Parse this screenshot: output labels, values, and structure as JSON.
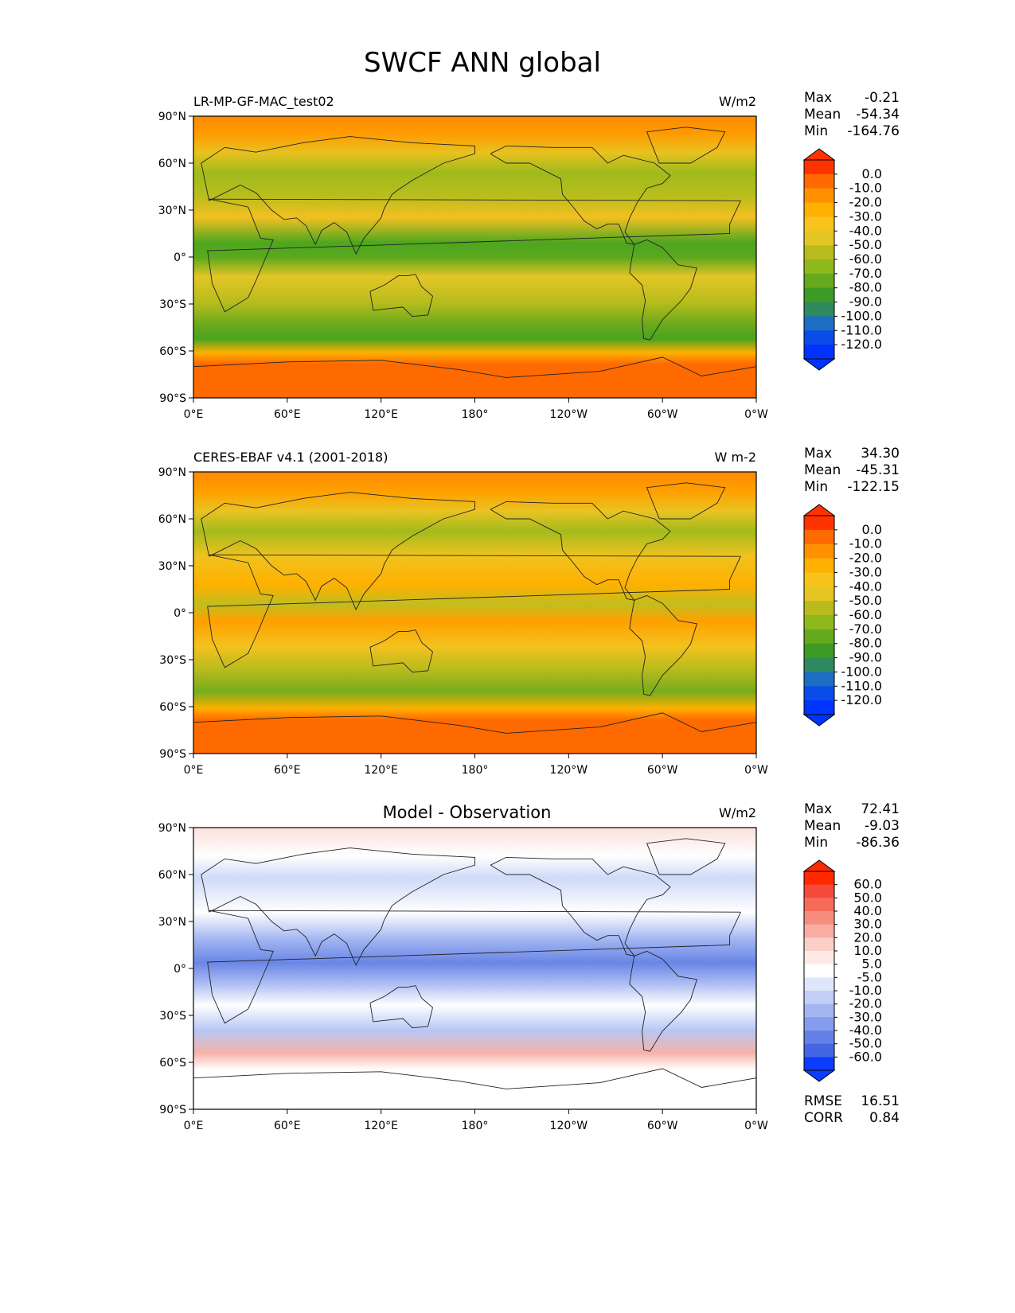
{
  "title": "SWCF ANN global",
  "lat_ticks": [
    "90°N",
    "60°N",
    "30°N",
    "0°",
    "30°S",
    "60°S",
    "90°S"
  ],
  "lon_ticks": [
    "0°E",
    "60°E",
    "120°E",
    "180°",
    "120°W",
    "60°W",
    "0°W"
  ],
  "chart_data": [
    {
      "type": "heatmap",
      "left_title": "LR-MP-GF-MAC_test02",
      "center_title": "",
      "units": "W/m2",
      "stats": [
        {
          "label": "Max",
          "value": "-0.21"
        },
        {
          "label": "Mean",
          "value": "-54.34"
        },
        {
          "label": "Min",
          "value": "-164.76"
        }
      ],
      "extra_stats": [],
      "colorbar_labels": [
        "0.0",
        "-10.0",
        "-20.0",
        "-30.0",
        "-40.0",
        "-50.0",
        "-60.0",
        "-70.0",
        "-80.0",
        "-90.0",
        "-100.0",
        "-110.0",
        "-120.0"
      ],
      "colorbar_colors": [
        "#ff3300",
        "#ff6a00",
        "#ff9100",
        "#ffb000",
        "#f7c31c",
        "#e3c624",
        "#b9bb1d",
        "#8fb81d",
        "#65a91c",
        "#3d9a24",
        "#2e8a5e",
        "#1c6ec3",
        "#0a4ce8",
        "#0033ff"
      ],
      "colorbar_edge": {
        "top": "#ff3300",
        "bottom": "#0033ff"
      }
    },
    {
      "type": "heatmap",
      "left_title": "CERES-EBAF v4.1 (2001-2018)",
      "center_title": "",
      "units": "W m-2",
      "stats": [
        {
          "label": "Max",
          "value": "34.30"
        },
        {
          "label": "Mean",
          "value": "-45.31"
        },
        {
          "label": "Min",
          "value": "-122.15"
        }
      ],
      "extra_stats": [],
      "colorbar_labels": [
        "0.0",
        "-10.0",
        "-20.0",
        "-30.0",
        "-40.0",
        "-50.0",
        "-60.0",
        "-70.0",
        "-80.0",
        "-90.0",
        "-100.0",
        "-110.0",
        "-120.0"
      ],
      "colorbar_colors": [
        "#ff3300",
        "#ff6a00",
        "#ff9100",
        "#ffb000",
        "#f7c31c",
        "#e3c624",
        "#b9bb1d",
        "#8fb81d",
        "#65a91c",
        "#3d9a24",
        "#2e8a5e",
        "#1c6ec3",
        "#0a4ce8",
        "#0033ff"
      ],
      "colorbar_edge": {
        "top": "#ff3300",
        "bottom": "#0033ff"
      }
    },
    {
      "type": "heatmap",
      "left_title": "",
      "center_title": "Model - Observation",
      "units": "W/m2",
      "stats": [
        {
          "label": "Max",
          "value": "72.41"
        },
        {
          "label": "Mean",
          "value": "-9.03"
        },
        {
          "label": "Min",
          "value": "-86.36"
        }
      ],
      "extra_stats": [
        {
          "label": "RMSE",
          "value": "16.51"
        },
        {
          "label": "CORR",
          "value": "0.84"
        }
      ],
      "colorbar_labels": [
        "60.0",
        "50.0",
        "40.0",
        "30.0",
        "20.0",
        "10.0",
        "5.0",
        "-5.0",
        "-10.0",
        "-20.0",
        "-30.0",
        "-40.0",
        "-50.0",
        "-60.0"
      ],
      "colorbar_colors": [
        "#ff2a00",
        "#f5493b",
        "#f56b5a",
        "#f78d7e",
        "#f9ada2",
        "#fbcfc8",
        "#fdeae6",
        "#ffffff",
        "#dfe6fb",
        "#c1cff7",
        "#a3b6f2",
        "#849cec",
        "#6581e7",
        "#4566e3",
        "#0c3cff"
      ],
      "colorbar_edge": {
        "top": "#ff2a00",
        "bottom": "#0c3cff"
      }
    }
  ]
}
